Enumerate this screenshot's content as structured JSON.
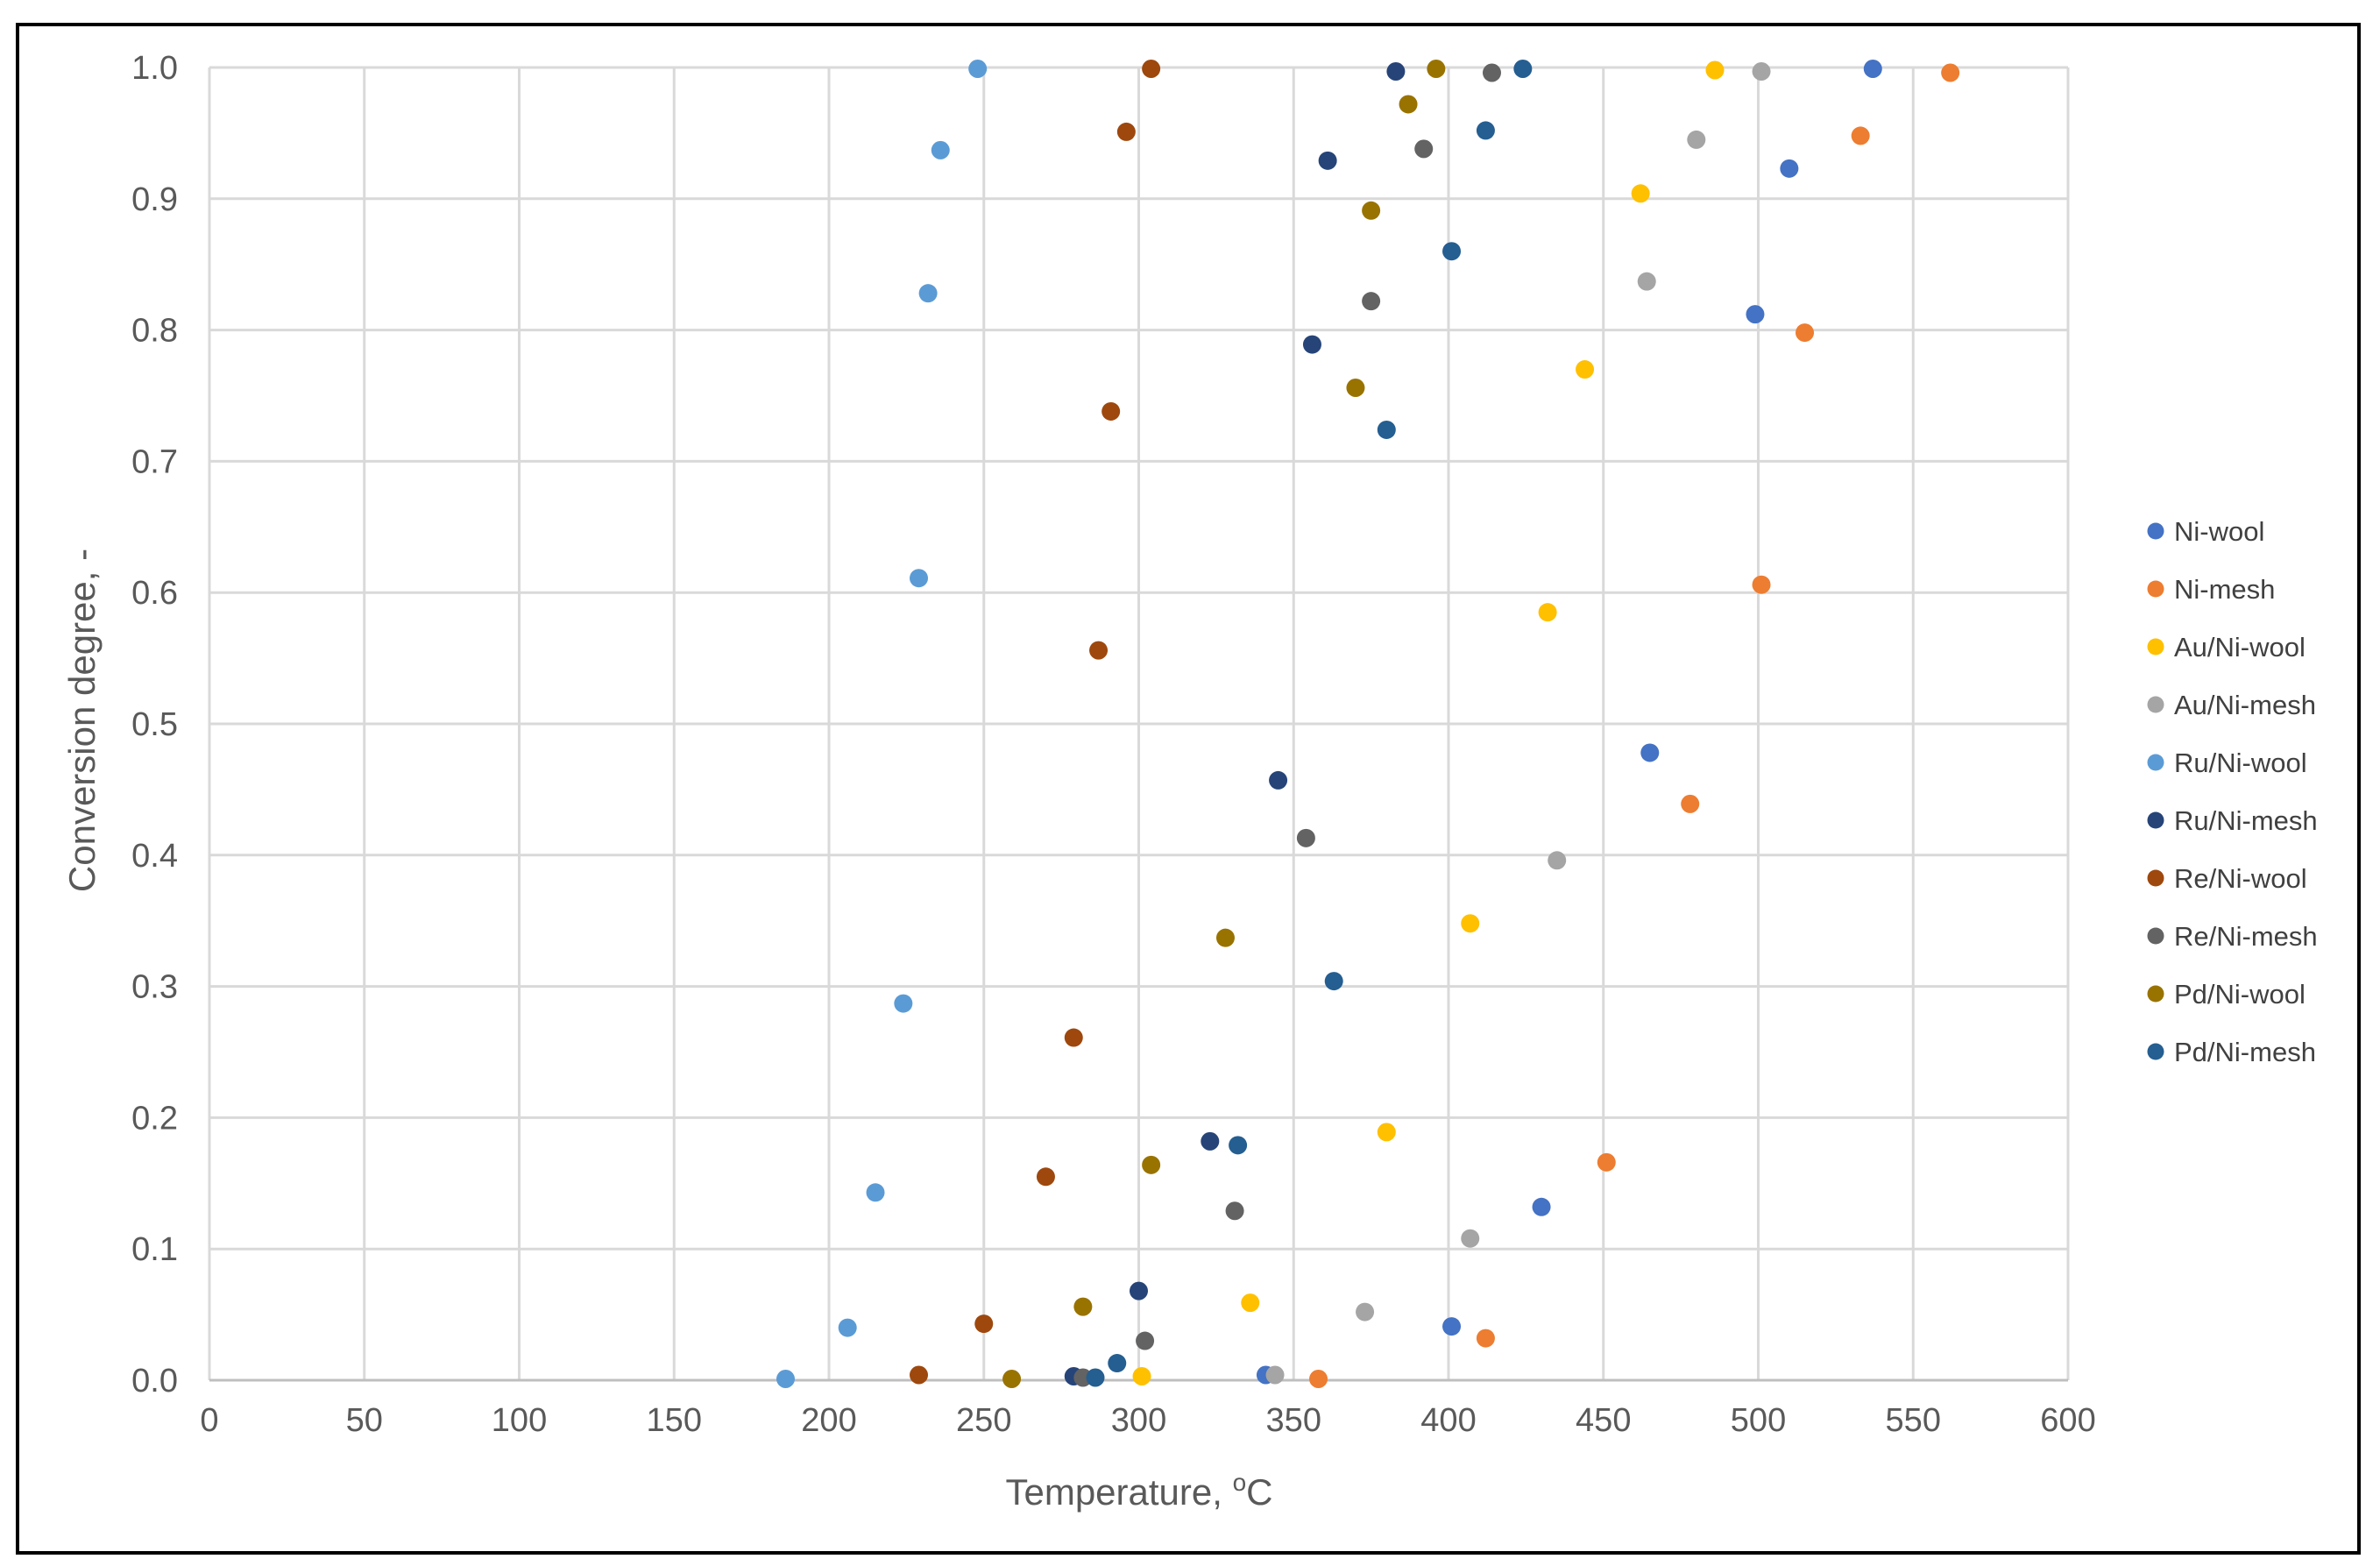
{
  "chart_data": {
    "type": "scatter",
    "xlabel": "Temperature, ",
    "xlabel_sup": "o",
    "xlabel_unit": "C",
    "ylabel": "Conversion degree, -",
    "xlim": [
      0,
      600
    ],
    "ylim": [
      0,
      1.0
    ],
    "x_ticks": [
      "0",
      "50",
      "100",
      "150",
      "200",
      "250",
      "300",
      "350",
      "400",
      "450",
      "500",
      "550",
      "600"
    ],
    "y_ticks": [
      "0.0",
      "0.1",
      "0.2",
      "0.3",
      "0.4",
      "0.5",
      "0.6",
      "0.7",
      "0.8",
      "0.9",
      "1.0"
    ],
    "grid": true,
    "legend_position": "right",
    "series": [
      {
        "name": "Ni-wool",
        "color": "#4472C4",
        "points": [
          [
            341,
            0.004
          ],
          [
            401,
            0.041
          ],
          [
            430,
            0.132
          ],
          [
            465,
            0.478
          ],
          [
            499,
            0.812
          ],
          [
            510,
            0.923
          ],
          [
            537,
            0.999
          ]
        ]
      },
      {
        "name": "Ni-mesh",
        "color": "#ED7D31",
        "points": [
          [
            358,
            0.001
          ],
          [
            412,
            0.032
          ],
          [
            451,
            0.166
          ],
          [
            478,
            0.439
          ],
          [
            501,
            0.606
          ],
          [
            515,
            0.798
          ],
          [
            533,
            0.948
          ],
          [
            562,
            0.996
          ]
        ]
      },
      {
        "name": "Au/Ni-wool",
        "color": "#FFC000",
        "points": [
          [
            301,
            0.003
          ],
          [
            336,
            0.059
          ],
          [
            380,
            0.189
          ],
          [
            407,
            0.348
          ],
          [
            432,
            0.585
          ],
          [
            444,
            0.77
          ],
          [
            462,
            0.904
          ],
          [
            486,
            0.998
          ]
        ]
      },
      {
        "name": "Au/Ni-mesh",
        "color": "#A5A5A5",
        "points": [
          [
            344,
            0.004
          ],
          [
            373,
            0.052
          ],
          [
            407,
            0.108
          ],
          [
            435,
            0.396
          ],
          [
            464,
            0.837
          ],
          [
            480,
            0.945
          ],
          [
            501,
            0.997
          ]
        ]
      },
      {
        "name": "Ru/Ni-wool",
        "color": "#5B9BD5",
        "points": [
          [
            186,
            0.001
          ],
          [
            206,
            0.04
          ],
          [
            215,
            0.143
          ],
          [
            224,
            0.287
          ],
          [
            229,
            0.611
          ],
          [
            232,
            0.828
          ],
          [
            236,
            0.937
          ],
          [
            248,
            0.999
          ]
        ]
      },
      {
        "name": "Ru/Ni-mesh",
        "color": "#264478",
        "points": [
          [
            279,
            0.003
          ],
          [
            300,
            0.068
          ],
          [
            323,
            0.182
          ],
          [
            345,
            0.457
          ],
          [
            356,
            0.789
          ],
          [
            361,
            0.929
          ],
          [
            383,
            0.997
          ]
        ]
      },
      {
        "name": "Re/Ni-wool",
        "color": "#9E480E",
        "points": [
          [
            229,
            0.004
          ],
          [
            250,
            0.043
          ],
          [
            270,
            0.155
          ],
          [
            279,
            0.261
          ],
          [
            287,
            0.556
          ],
          [
            291,
            0.738
          ],
          [
            296,
            0.951
          ],
          [
            304,
            0.999
          ]
        ]
      },
      {
        "name": "Re/Ni-mesh",
        "color": "#636363",
        "points": [
          [
            282,
            0.002
          ],
          [
            302,
            0.03
          ],
          [
            331,
            0.129
          ],
          [
            354,
            0.413
          ],
          [
            375,
            0.822
          ],
          [
            392,
            0.938
          ],
          [
            414,
            0.996
          ]
        ]
      },
      {
        "name": "Pd/Ni-wool",
        "color": "#997300",
        "points": [
          [
            259,
            0.001
          ],
          [
            282,
            0.056
          ],
          [
            304,
            0.164
          ],
          [
            328,
            0.337
          ],
          [
            370,
            0.756
          ],
          [
            375,
            0.891
          ],
          [
            387,
            0.972
          ],
          [
            396,
            0.999
          ]
        ]
      },
      {
        "name": "Pd/Ni-mesh",
        "color": "#255E91",
        "points": [
          [
            286,
            0.002
          ],
          [
            293,
            0.013
          ],
          [
            332,
            0.179
          ],
          [
            363,
            0.304
          ],
          [
            380,
            0.724
          ],
          [
            401,
            0.86
          ],
          [
            412,
            0.952
          ],
          [
            424,
            0.999
          ]
        ]
      }
    ]
  }
}
